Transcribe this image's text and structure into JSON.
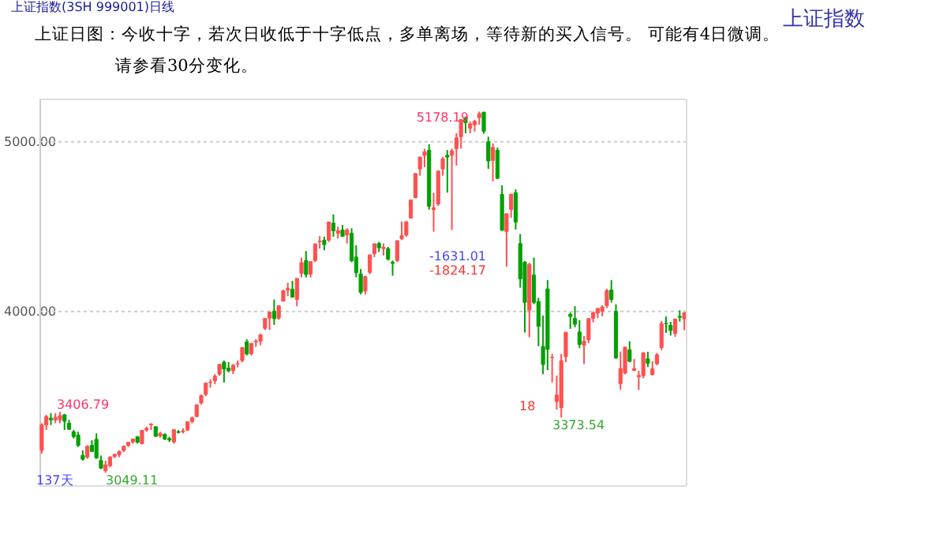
{
  "chart_data": {
    "type": "candlestick",
    "title": "上证指数(3SH 999001)日线",
    "subtitle": [
      "上证日图：今收十字，若次日收低于十字低点，多单离场，等待新的买入信号。 可能有4日微调。",
      "请参看30分变化。"
    ],
    "categories": [
      null,
      null,
      null,
      null,
      null,
      null,
      null,
      null,
      null,
      null,
      null,
      null,
      null,
      null,
      null,
      null,
      null,
      null,
      null,
      null,
      null,
      null,
      null,
      null,
      null,
      null,
      null,
      null,
      null,
      null,
      null,
      null,
      null,
      null,
      null,
      null,
      null,
      null,
      null,
      null,
      null,
      null,
      null,
      null,
      null,
      null,
      null,
      null,
      null,
      null,
      null,
      null,
      null,
      null,
      null,
      null,
      null,
      null,
      null,
      null,
      null,
      null,
      null,
      null,
      null,
      null,
      null,
      null,
      null,
      null,
      null,
      null,
      null,
      null,
      null,
      null,
      null,
      null,
      null,
      null,
      null,
      null,
      null,
      null,
      null,
      null,
      null,
      null,
      null,
      null,
      null,
      null,
      null,
      null,
      null,
      null,
      null,
      null,
      null,
      null,
      null,
      null,
      null,
      null,
      null,
      null,
      null,
      null,
      null,
      null,
      null,
      null,
      null,
      null,
      null,
      null,
      null,
      null,
      null,
      null,
      null,
      null,
      null,
      null,
      null,
      null,
      null,
      null,
      null,
      null,
      null,
      null,
      null,
      null,
      null,
      null,
      null,
      null,
      null,
      null,
      null,
      null
    ],
    "ohlc": [
      [
        3180,
        3340,
        3160,
        3330
      ],
      [
        3330,
        3390,
        3300,
        3380
      ],
      [
        3370,
        3400,
        3330,
        3360
      ],
      [
        3360,
        3400,
        3340,
        3375
      ],
      [
        3360,
        3406.79,
        3340,
        3385
      ],
      [
        3390,
        3395,
        3300,
        3352
      ],
      [
        3340,
        3360,
        3300,
        3305
      ],
      [
        3290,
        3300,
        3250,
        3262
      ],
      [
        3270,
        3290,
        3200,
        3210
      ],
      [
        3150,
        3180,
        3120,
        3128
      ],
      [
        3140,
        3210,
        3130,
        3204
      ],
      [
        3210,
        3240,
        3170,
        3174
      ],
      [
        3245,
        3280,
        3130,
        3136
      ],
      [
        3120,
        3150,
        3070,
        3075
      ],
      [
        3060,
        3119,
        3049.11,
        3095
      ],
      [
        3090,
        3145,
        3080,
        3141
      ],
      [
        3145,
        3160,
        3135,
        3157
      ],
      [
        3155,
        3180,
        3140,
        3173
      ],
      [
        3180,
        3210,
        3170,
        3203
      ],
      [
        3210,
        3230,
        3200,
        3228
      ],
      [
        3230,
        3250,
        3220,
        3247
      ],
      [
        3260,
        3265,
        3220,
        3229
      ],
      [
        3220,
        3300,
        3215,
        3298
      ],
      [
        3300,
        3320,
        3290,
        3310
      ],
      [
        3330,
        3340,
        3300,
        3336
      ],
      [
        3320,
        3320,
        3260,
        3263
      ],
      [
        3265,
        3290,
        3255,
        3280
      ],
      [
        3275,
        3280,
        3240,
        3248
      ],
      [
        3250,
        3260,
        3230,
        3241
      ],
      [
        3230,
        3305,
        3220,
        3302
      ],
      [
        3290,
        3300,
        3280,
        3286
      ],
      [
        3290,
        3310,
        3280,
        3295
      ],
      [
        3300,
        3350,
        3295,
        3349
      ],
      [
        3350,
        3380,
        3340,
        3372
      ],
      [
        3380,
        3450,
        3375,
        3449
      ],
      [
        3460,
        3510,
        3450,
        3503
      ],
      [
        3510,
        3580,
        3500,
        3577
      ],
      [
        3580,
        3600,
        3550,
        3582
      ],
      [
        3590,
        3630,
        3570,
        3617
      ],
      [
        3630,
        3690,
        3620,
        3687
      ],
      [
        3700,
        3710,
        3580,
        3660
      ],
      [
        3665,
        3700,
        3640,
        3650
      ],
      [
        3650,
        3690,
        3630,
        3682
      ],
      [
        3690,
        3710,
        3670,
        3691
      ],
      [
        3710,
        3790,
        3700,
        3786
      ],
      [
        3820,
        3835,
        3740,
        3748
      ],
      [
        3750,
        3815,
        3740,
        3810
      ],
      [
        3820,
        3835,
        3790,
        3825
      ],
      [
        3825,
        3865,
        3800,
        3863
      ],
      [
        3900,
        3961,
        3890,
        3958
      ],
      [
        3960,
        4000,
        3890,
        3995
      ],
      [
        4000,
        4070,
        3920,
        3957
      ],
      [
        3960,
        4035,
        3950,
        4034
      ],
      [
        4060,
        4128,
        4060,
        4121
      ],
      [
        4125,
        4168,
        4090,
        4135
      ],
      [
        4130,
        4180,
        4080,
        4084
      ],
      [
        4070,
        4195,
        4030,
        4194
      ],
      [
        4225,
        4317,
        4200,
        4287
      ],
      [
        4300,
        4356,
        4200,
        4217
      ],
      [
        4220,
        4294,
        4200,
        4293
      ],
      [
        4300,
        4400,
        4290,
        4398
      ],
      [
        4410,
        4444,
        4370,
        4414
      ],
      [
        4420,
        4440,
        4360,
        4394
      ],
      [
        4420,
        4529,
        4410,
        4527
      ],
      [
        4520,
        4572,
        4440,
        4476
      ],
      [
        4460,
        4500,
        4430,
        4476
      ],
      [
        4480,
        4510,
        4440,
        4442
      ],
      [
        4450,
        4490,
        4400,
        4480
      ],
      [
        4460,
        4490,
        4290,
        4298
      ],
      [
        4320,
        4390,
        4200,
        4229
      ],
      [
        4220,
        4250,
        4100,
        4112
      ],
      [
        4120,
        4210,
        4100,
        4205
      ],
      [
        4230,
        4335,
        4220,
        4333
      ],
      [
        4340,
        4400,
        4320,
        4398
      ],
      [
        4400,
        4410,
        4350,
        4375
      ],
      [
        4370,
        4400,
        4330,
        4378
      ],
      [
        4370,
        4380,
        4300,
        4308
      ],
      [
        4290,
        4300,
        4210,
        4283
      ],
      [
        4300,
        4418,
        4290,
        4417
      ],
      [
        4430,
        4530,
        4420,
        4446
      ],
      [
        4450,
        4530,
        4440,
        4529
      ],
      [
        4550,
        4660,
        4550,
        4657
      ],
      [
        4670,
        4814,
        4670,
        4813
      ],
      [
        4840,
        4911,
        4800,
        4910
      ],
      [
        4920,
        4958,
        4850,
        4941
      ],
      [
        4950,
        4986,
        4600,
        4620
      ],
      [
        4600,
        4700,
        4470,
        4611
      ],
      [
        4633,
        4829,
        4622,
        4828
      ],
      [
        4840,
        4911,
        4800,
        4900
      ],
      [
        4920,
        4951,
        4700,
        4910
      ],
      [
        4920,
        4960,
        4480,
        4947
      ],
      [
        4960,
        5051,
        4860,
        5023
      ],
      [
        5030,
        5131,
        4960,
        5131
      ],
      [
        5140,
        5147,
        5050,
        5113
      ],
      [
        5080,
        5118,
        5050,
        5106
      ],
      [
        5100,
        5130,
        5060,
        5121
      ],
      [
        5143,
        5178.19,
        5100,
        5166
      ],
      [
        5175,
        5176,
        5048,
        5062
      ],
      [
        5000,
        5030,
        4840,
        4887
      ],
      [
        4890,
        4990,
        4767,
        4967
      ],
      [
        4950,
        4966,
        4780,
        4785
      ],
      [
        4690,
        4744,
        4476,
        4478
      ],
      [
        4470,
        4577,
        4264,
        4576
      ],
      [
        4600,
        4691,
        4552,
        4691
      ],
      [
        4700,
        4720,
        4483,
        4527
      ],
      [
        4400,
        4456,
        4140,
        4192
      ],
      [
        4290,
        4297,
        3875,
        4053
      ],
      [
        4007,
        4287,
        3847,
        4277
      ],
      [
        4214,
        4317,
        4043,
        4053
      ],
      [
        4058,
        4080,
        3795,
        3912
      ],
      [
        3793,
        3975,
        3629,
        3687
      ],
      [
        4132,
        4184,
        3653,
        3776
      ],
      [
        3727,
        3749,
        3580,
        3728
      ],
      [
        3468,
        3621,
        3421,
        3507
      ],
      [
        3432,
        3749,
        3373.54,
        3709
      ],
      [
        3733,
        3878,
        3700,
        3877
      ],
      [
        3982,
        3993,
        3897,
        3970
      ],
      [
        3958,
        4030,
        3906,
        3924
      ],
      [
        3878,
        3948,
        3783,
        3805
      ],
      [
        3801,
        3855,
        3689,
        3823
      ],
      [
        3832,
        3960,
        3812,
        3957
      ],
      [
        3958,
        4000,
        3935,
        3992
      ],
      [
        3990,
        4020,
        3961,
        4017
      ],
      [
        4000,
        4035,
        3970,
        4026
      ],
      [
        4034,
        4132,
        4020,
        4123
      ],
      [
        4126,
        4184,
        4052,
        4070
      ],
      [
        4000,
        4042,
        3720,
        3725
      ],
      [
        3574,
        3763,
        3537,
        3663
      ],
      [
        3636,
        3791,
        3629,
        3789
      ],
      [
        3773,
        3824,
        3700,
        3705
      ],
      [
        3652,
        3719,
        3647,
        3663
      ],
      [
        3614,
        3650,
        3536,
        3622
      ],
      [
        3621,
        3757,
        3606,
        3756
      ],
      [
        3720,
        3762,
        3671,
        3694
      ],
      [
        3626,
        3706,
        3625,
        3661
      ],
      [
        3691,
        3755,
        3682,
        3744
      ],
      [
        3786,
        3943,
        3772,
        3928
      ],
      [
        3929,
        3970,
        3873,
        3927
      ],
      [
        3917,
        3938,
        3857,
        3887
      ],
      [
        3869,
        3957,
        3850,
        3955
      ],
      [
        3970,
        4006,
        3939,
        3965
      ],
      [
        3956,
        3994,
        3889,
        3993
      ]
    ],
    "colors": [
      "#ff5050",
      "#ff5050",
      "#00a000",
      "#ff5050",
      "#ff5050",
      "#00a000",
      "#00a000",
      "#00a000",
      "#00a000",
      "#00a000",
      "#ff5050",
      "#00a000",
      "#00a000",
      "#00a000",
      "#ff5050",
      "#ff5050",
      "#ff5050",
      "#ff5050",
      "#ff5050",
      "#ff5050",
      "#ff5050",
      "#00a000",
      "#ff5050",
      "#ff5050",
      "#ff5050",
      "#00a000",
      "#ff5050",
      "#00a000",
      "#00a000",
      "#ff5050",
      "#00a000",
      "#ff5050",
      "#ff5050",
      "#ff5050",
      "#ff5050",
      "#ff5050",
      "#ff5050",
      "#ff5050",
      "#ff5050",
      "#ff5050",
      "#00a000",
      "#00a000",
      "#ff5050",
      "#ff5050",
      "#ff5050",
      "#00a000",
      "#ff5050",
      "#ff5050",
      "#ff5050",
      "#ff5050",
      "#ff5050",
      "#00a000",
      "#ff5050",
      "#ff5050",
      "#ff5050",
      "#00a000",
      "#ff5050",
      "#ff5050",
      "#00a000",
      "#ff5050",
      "#ff5050",
      "#ff5050",
      "#00a000",
      "#ff5050",
      "#00a000",
      "#ff5050",
      "#00a000",
      "#ff5050",
      "#00a000",
      "#00a000",
      "#00a000",
      "#ff5050",
      "#ff5050",
      "#ff5050",
      "#00a000",
      "#ff5050",
      "#00a000",
      "#00a000",
      "#ff5050",
      "#ff5050",
      "#ff5050",
      "#ff5050",
      "#ff5050",
      "#ff5050",
      "#ff5050",
      "#00a000",
      "#ff5050",
      "#ff5050",
      "#ff5050",
      "#00a000",
      "#ff5050",
      "#ff5050",
      "#ff5050",
      "#00a000",
      "#ff5050",
      "#ff5050",
      "#ff5050",
      "#00a000",
      "#00a000",
      "#ff5050",
      "#00a000",
      "#00a000",
      "#ff5050",
      "#ff5050",
      "#00a000",
      "#00a000",
      "#00a000",
      "#ff5050",
      "#00a000",
      "#00a000",
      "#00a000",
      "#00a000",
      "#ff5050",
      "#ff5050",
      "#ff5050",
      "#ff5050",
      "#00a000",
      "#00a000",
      "#00a000",
      "#ff5050",
      "#ff5050",
      "#ff5050",
      "#ff5050",
      "#ff5050",
      "#ff5050",
      "#00a000",
      "#00a000",
      "#ff5050",
      "#ff5050",
      "#00a000",
      "#ff5050",
      "#ff5050",
      "#ff5050",
      "#00a000",
      "#ff5050",
      "#ff5050",
      "#ff5050",
      "#00a000",
      "#00a000",
      "#ff5050",
      "#00a000",
      "#ff5050"
    ],
    "ylim": [
      2970,
      5250
    ],
    "yticks": [
      {
        "value": 4000,
        "label": "4000.00"
      },
      {
        "value": 5000,
        "label": "5000.00"
      }
    ],
    "grid": "y",
    "annotations": [
      "上证指数",
      "3406.79",
      "3049.11",
      "5178.19",
      "3373.54",
      "-1631.01",
      "-1824.17",
      "18",
      "137天"
    ]
  }
}
